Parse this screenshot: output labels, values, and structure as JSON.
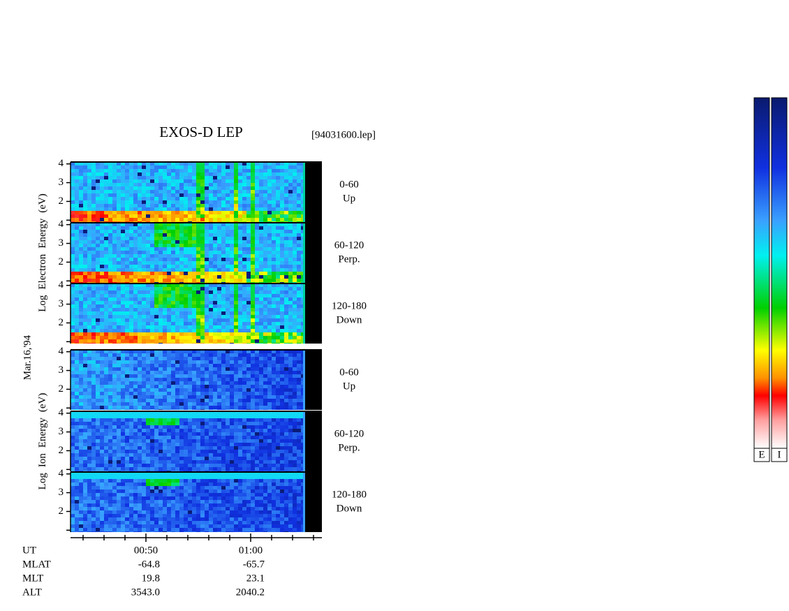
{
  "chart_data": {
    "type": "spectrogram",
    "title": "EXOS-D LEP",
    "file": "[94031600.lep]",
    "date": "Mar.16,'94",
    "ylim": [
      0.9,
      4.1
    ],
    "yticks": [
      2,
      3,
      4
    ],
    "yminor": [
      1
    ],
    "xlim": [
      42.8,
      66.8
    ],
    "xticks": [
      {
        "value": 50,
        "label": "00:50"
      },
      {
        "value": 60,
        "label": "01:00"
      }
    ],
    "xminor": [
      44,
      46,
      48,
      52,
      54,
      56,
      58,
      62,
      64,
      66
    ],
    "groups": [
      {
        "ylabel": [
          "Log",
          "Electron",
          "Energy",
          "(eV)"
        ],
        "panels": [
          {
            "angle": "0-60",
            "dir": "Up"
          },
          {
            "angle": "60-120",
            "dir": "Perp."
          },
          {
            "angle": "120-180",
            "dir": "Down"
          }
        ]
      },
      {
        "ylabel": [
          "Log",
          "Ion",
          "Energy",
          "(eV)"
        ],
        "panels": [
          {
            "angle": "0-60",
            "dir": "Up"
          },
          {
            "angle": "60-120",
            "dir": "Perp."
          },
          {
            "angle": "120-180",
            "dir": "Down"
          }
        ]
      }
    ],
    "ephemeris": [
      {
        "name": "UT",
        "values": [
          "00:50",
          "01:00"
        ]
      },
      {
        "name": "MLAT",
        "values": [
          "-64.8",
          "-65.7"
        ]
      },
      {
        "name": "MLT",
        "values": [
          "19.8",
          "23.1"
        ]
      },
      {
        "name": "ALT",
        "values": [
          "3543.0",
          "2040.2"
        ]
      }
    ],
    "colorbars": [
      "E",
      "I"
    ]
  }
}
